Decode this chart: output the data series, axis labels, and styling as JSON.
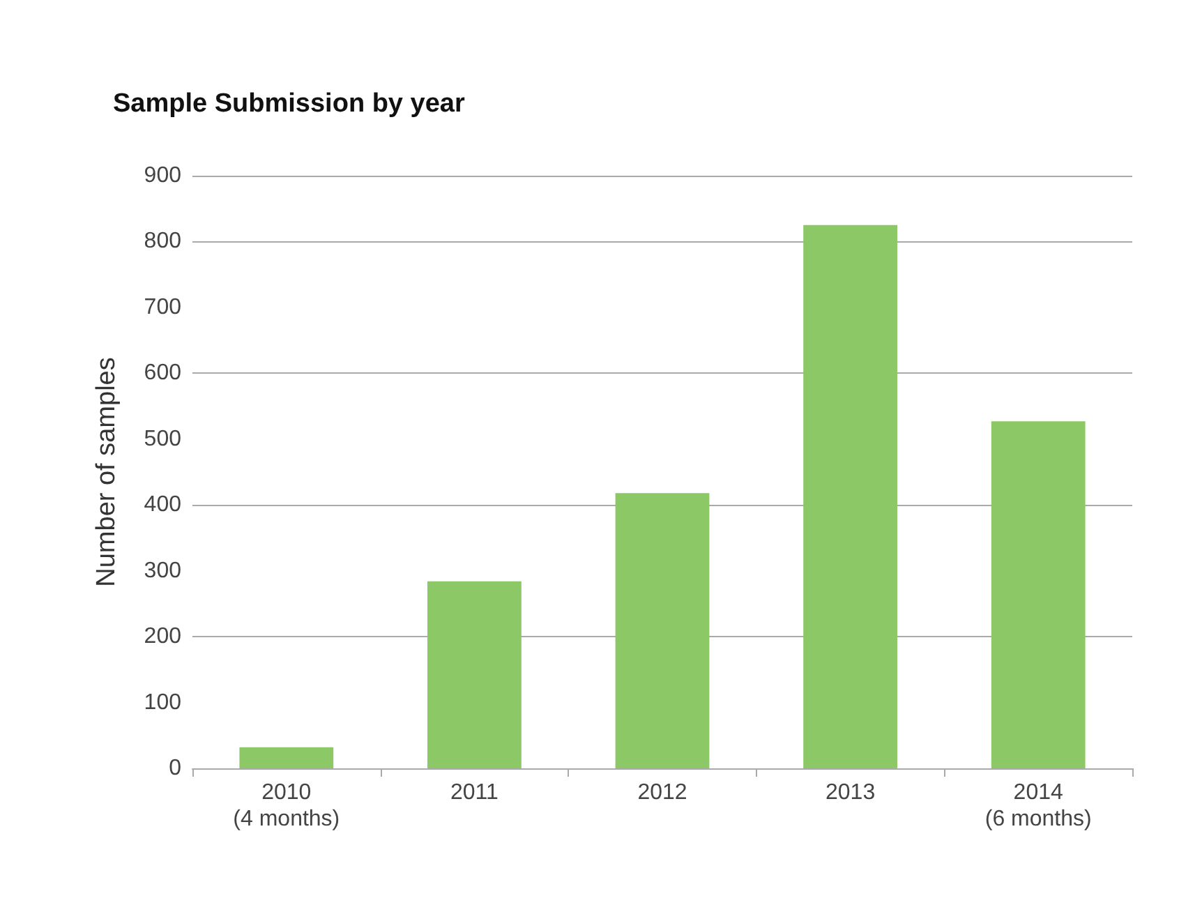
{
  "chart_data": {
    "type": "bar",
    "title": "Sample Submission by year",
    "ylabel": "Number of samples",
    "categories": [
      "2010\n(4 months)",
      "2011",
      "2012",
      "2013",
      "2014\n(6 months)"
    ],
    "values": [
      32,
      284,
      418,
      825,
      527
    ],
    "color": "#8cc866",
    "ylim": [
      0,
      900
    ],
    "yticks": [
      0,
      100,
      200,
      300,
      400,
      500,
      600,
      700,
      800,
      900
    ],
    "grid": "y"
  }
}
